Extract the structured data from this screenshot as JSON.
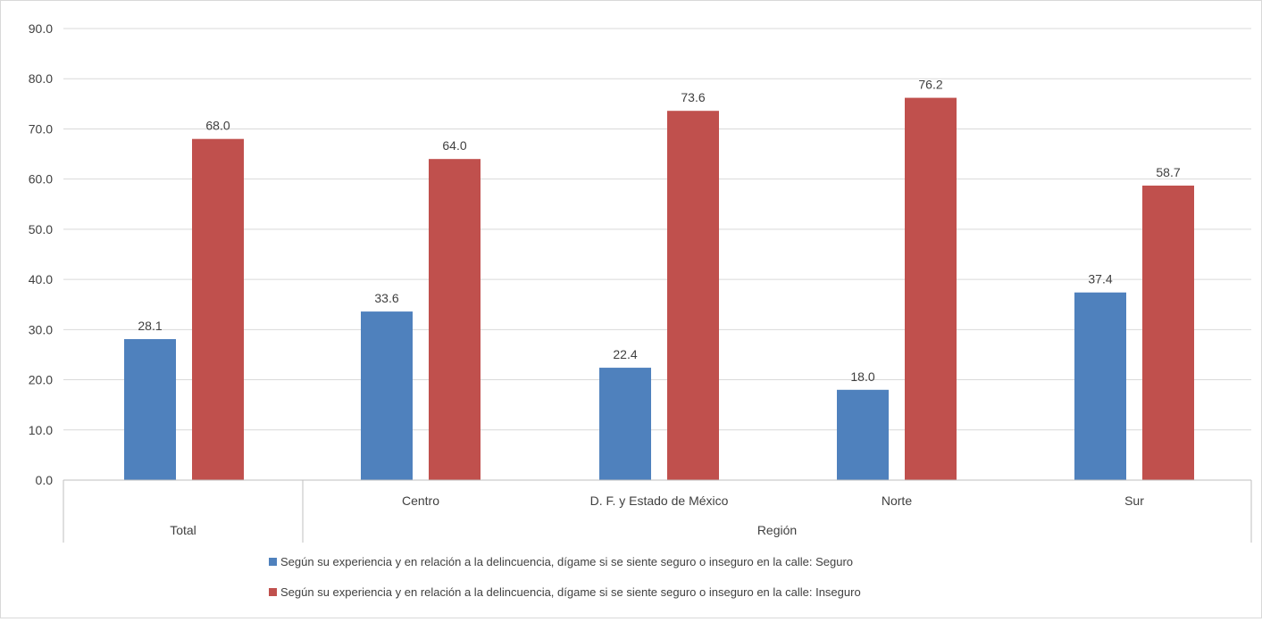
{
  "chart_data": {
    "type": "bar",
    "title": "",
    "xlabel": "",
    "ylabel": "",
    "ylim": [
      0,
      90
    ],
    "yticks": [
      "0.0",
      "10.0",
      "20.0",
      "30.0",
      "40.0",
      "50.0",
      "60.0",
      "70.0",
      "80.0",
      "90.0"
    ],
    "grid": true,
    "legend_position": "bottom",
    "categories": [
      {
        "label": "Total",
        "group": "",
        "level1": "Total"
      },
      {
        "label": "Centro",
        "group": "Región"
      },
      {
        "label": "D. F. y Estado de México",
        "group": "Región"
      },
      {
        "label": "Norte",
        "group": "Región"
      },
      {
        "label": "Sur",
        "group": "Región"
      }
    ],
    "group_labels": [
      "Total",
      "Región"
    ],
    "series": [
      {
        "name": "Según su experiencia y en relación a la delincuencia, dígame si se siente seguro o inseguro en la calle: Seguro",
        "color": "#4f81bd",
        "values": [
          28.1,
          33.6,
          22.4,
          18.0,
          37.4
        ],
        "labels": [
          "28.1",
          "33.6",
          "22.4",
          "18.0",
          "37.4"
        ]
      },
      {
        "name": "Según su experiencia y en relación a la delincuencia, dígame si se siente seguro o inseguro en la calle: Inseguro",
        "color": "#c0504d",
        "values": [
          68.0,
          64.0,
          73.6,
          76.2,
          58.7
        ],
        "labels": [
          "68.0",
          "64.0",
          "73.6",
          "76.2",
          "58.7"
        ]
      }
    ]
  }
}
